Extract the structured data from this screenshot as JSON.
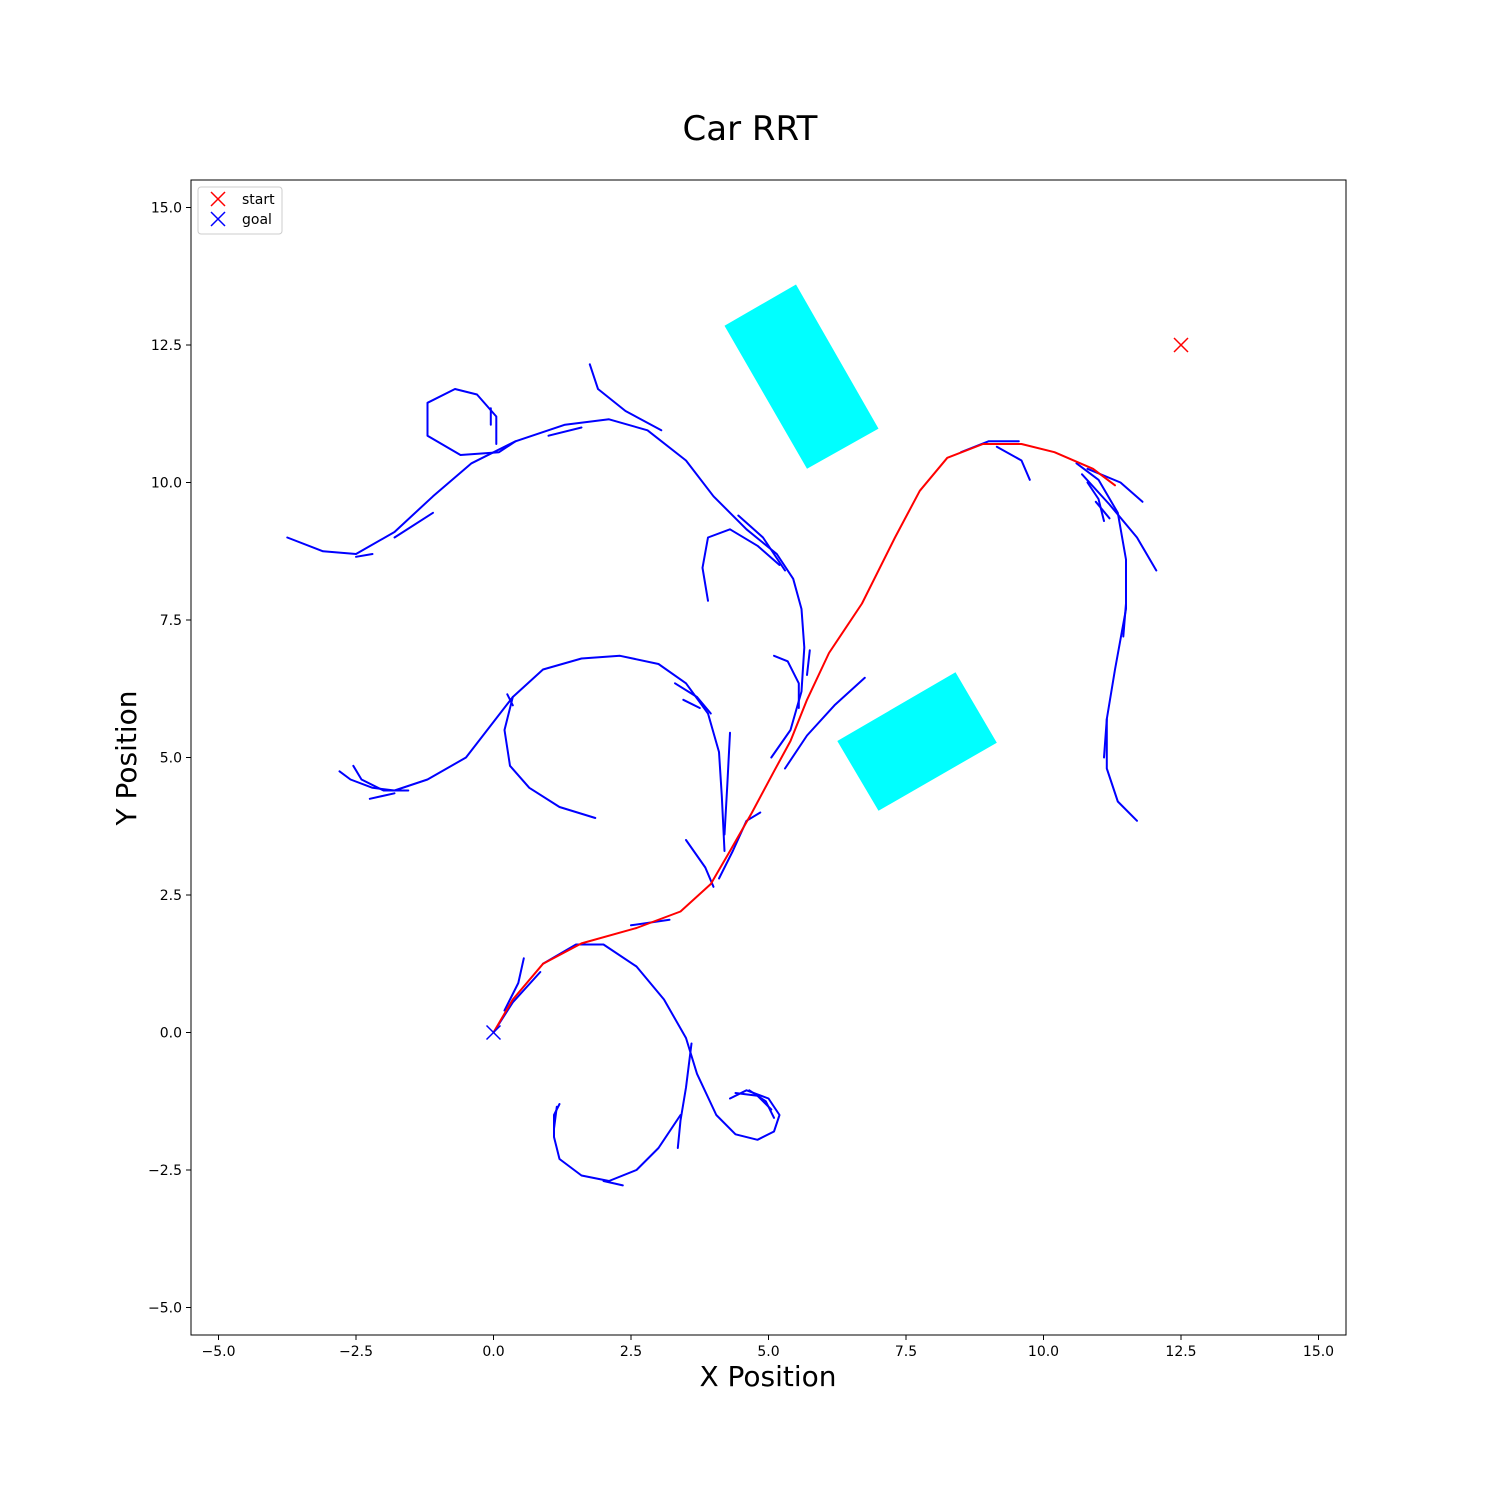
{
  "chart_data": {
    "type": "line",
    "title": "Car RRT",
    "xlabel": "X Position",
    "ylabel": "Y Position",
    "xlim": [
      -5.5,
      15.5
    ],
    "ylim": [
      -5.5,
      15.5
    ],
    "xticks": [
      -5.0,
      -2.5,
      0.0,
      2.5,
      5.0,
      7.5,
      10.0,
      12.5,
      15.0
    ],
    "yticks": [
      -5.0,
      -2.5,
      0.0,
      2.5,
      5.0,
      7.5,
      10.0,
      12.5,
      15.0
    ],
    "xtick_labels": [
      "−5.0",
      "−2.5",
      "0.0",
      "2.5",
      "5.0",
      "7.5",
      "10.0",
      "12.5",
      "15.0"
    ],
    "ytick_labels": [
      "−5.0",
      "−2.5",
      "0.0",
      "2.5",
      "5.0",
      "7.5",
      "10.0",
      "12.5",
      "15.0"
    ],
    "grid": false,
    "legend_position": "top-left",
    "legend": [
      {
        "label": "start",
        "color": "#ff0000",
        "marker": "x"
      },
      {
        "label": "goal",
        "color": "#0000ff",
        "marker": "x"
      }
    ],
    "markers": [
      {
        "name": "start",
        "x": 12.5,
        "y": 12.5,
        "color": "#ff0000"
      },
      {
        "name": "goal",
        "x": 0.0,
        "y": 0.0,
        "color": "#0000ff"
      }
    ],
    "obstacles": [
      {
        "color": "#00ffff",
        "corners": [
          [
            4.2,
            12.85
          ],
          [
            5.5,
            13.6
          ],
          [
            7.0,
            10.98
          ],
          [
            5.7,
            10.25
          ]
        ]
      },
      {
        "color": "#00ffff",
        "corners": [
          [
            6.25,
            5.3
          ],
          [
            8.4,
            6.55
          ],
          [
            9.15,
            5.27
          ],
          [
            7.0,
            4.03
          ]
        ]
      }
    ],
    "tree_color": "#0000ff",
    "path_color": "#ff0000",
    "series": [
      {
        "color": "#ff0000",
        "points": [
          [
            0.0,
            0.0
          ],
          [
            0.35,
            0.6
          ],
          [
            0.9,
            1.25
          ],
          [
            1.6,
            1.62
          ],
          [
            2.6,
            1.9
          ],
          [
            3.4,
            2.2
          ],
          [
            3.95,
            2.7
          ],
          [
            4.3,
            3.3
          ],
          [
            4.7,
            4.0
          ],
          [
            5.1,
            4.75
          ],
          [
            5.4,
            5.3
          ],
          [
            5.7,
            6.05
          ],
          [
            6.1,
            6.9
          ],
          [
            6.7,
            7.8
          ],
          [
            7.3,
            9.0
          ],
          [
            7.75,
            9.85
          ],
          [
            8.25,
            10.45
          ],
          [
            8.9,
            10.7
          ],
          [
            9.6,
            10.7
          ],
          [
            10.2,
            10.55
          ],
          [
            10.9,
            10.25
          ],
          [
            11.3,
            9.95
          ]
        ]
      },
      {
        "points": [
          [
            0.0,
            0.0
          ],
          [
            0.35,
            0.55
          ],
          [
            0.85,
            1.1
          ]
        ]
      },
      {
        "points": [
          [
            0.2,
            0.4
          ],
          [
            0.45,
            0.9
          ],
          [
            0.55,
            1.35
          ]
        ]
      },
      {
        "points": [
          [
            0.9,
            1.25
          ],
          [
            1.5,
            1.6
          ],
          [
            2.0,
            1.6
          ],
          [
            2.6,
            1.2
          ],
          [
            3.1,
            0.6
          ],
          [
            3.5,
            -0.1
          ],
          [
            3.7,
            -0.75
          ],
          [
            4.05,
            -1.5
          ],
          [
            4.4,
            -1.85
          ],
          [
            4.8,
            -1.95
          ],
          [
            5.1,
            -1.8
          ],
          [
            5.2,
            -1.5
          ],
          [
            5.0,
            -1.2
          ],
          [
            4.6,
            -1.05
          ],
          [
            4.3,
            -1.2
          ]
        ]
      },
      {
        "points": [
          [
            4.4,
            -1.1
          ],
          [
            4.8,
            -1.15
          ],
          [
            5.05,
            -1.4
          ]
        ]
      },
      {
        "points": [
          [
            4.65,
            -1.05
          ],
          [
            4.95,
            -1.25
          ],
          [
            5.1,
            -1.55
          ]
        ]
      },
      {
        "points": [
          [
            3.6,
            -0.2
          ],
          [
            3.5,
            -1.0
          ],
          [
            3.4,
            -1.6
          ],
          [
            3.35,
            -2.1
          ]
        ]
      },
      {
        "points": [
          [
            3.4,
            -1.5
          ],
          [
            3.0,
            -2.1
          ],
          [
            2.6,
            -2.5
          ],
          [
            2.1,
            -2.7
          ],
          [
            1.6,
            -2.6
          ],
          [
            1.2,
            -2.3
          ],
          [
            1.1,
            -1.9
          ],
          [
            1.1,
            -1.5
          ],
          [
            1.2,
            -1.3
          ]
        ]
      },
      {
        "points": [
          [
            2.0,
            -2.7
          ],
          [
            2.35,
            -2.78
          ]
        ]
      },
      {
        "points": [
          [
            1.15,
            -1.35
          ],
          [
            1.1,
            -1.75
          ]
        ]
      },
      {
        "points": [
          [
            3.5,
            3.5
          ],
          [
            3.85,
            3.0
          ],
          [
            4.0,
            2.65
          ]
        ]
      },
      {
        "points": [
          [
            4.1,
            2.8
          ],
          [
            4.35,
            3.3
          ],
          [
            4.6,
            3.85
          ],
          [
            4.85,
            4.0
          ]
        ]
      },
      {
        "points": [
          [
            2.5,
            1.95
          ],
          [
            3.2,
            2.05
          ]
        ]
      },
      {
        "points": [
          [
            4.2,
            3.3
          ],
          [
            4.15,
            4.3
          ],
          [
            4.1,
            5.1
          ],
          [
            3.9,
            5.8
          ],
          [
            3.5,
            6.35
          ],
          [
            3.0,
            6.7
          ],
          [
            2.3,
            6.85
          ],
          [
            1.6,
            6.8
          ],
          [
            0.9,
            6.6
          ],
          [
            0.35,
            6.1
          ],
          [
            -0.5,
            5.0
          ],
          [
            -1.2,
            4.6
          ],
          [
            -1.8,
            4.4
          ],
          [
            -2.2,
            4.45
          ],
          [
            -2.6,
            4.6
          ],
          [
            -2.8,
            4.75
          ]
        ]
      },
      {
        "points": [
          [
            -2.55,
            4.85
          ],
          [
            -2.4,
            4.6
          ],
          [
            -2.0,
            4.4
          ],
          [
            -1.55,
            4.4
          ]
        ]
      },
      {
        "points": [
          [
            -2.25,
            4.25
          ],
          [
            -1.8,
            4.35
          ]
        ]
      },
      {
        "points": [
          [
            4.2,
            3.6
          ],
          [
            4.25,
            4.5
          ],
          [
            4.3,
            5.45
          ]
        ]
      },
      {
        "points": [
          [
            3.3,
            6.35
          ],
          [
            3.7,
            6.1
          ],
          [
            3.95,
            5.8
          ]
        ]
      },
      {
        "points": [
          [
            3.45,
            6.05
          ],
          [
            3.75,
            5.9
          ]
        ]
      },
      {
        "points": [
          [
            0.35,
            6.1
          ],
          [
            0.2,
            5.5
          ],
          [
            0.3,
            4.85
          ],
          [
            0.65,
            4.45
          ],
          [
            1.2,
            4.1
          ],
          [
            1.85,
            3.9
          ]
        ]
      },
      {
        "points": [
          [
            0.25,
            6.15
          ],
          [
            0.35,
            5.95
          ]
        ]
      },
      {
        "points": [
          [
            5.05,
            5.0
          ],
          [
            5.4,
            5.5
          ],
          [
            5.6,
            6.2
          ],
          [
            5.65,
            7.0
          ],
          [
            5.6,
            7.7
          ],
          [
            5.45,
            8.25
          ],
          [
            5.15,
            8.7
          ],
          [
            4.6,
            9.15
          ],
          [
            4.0,
            9.75
          ],
          [
            3.5,
            10.4
          ],
          [
            2.8,
            10.95
          ],
          [
            2.1,
            11.15
          ],
          [
            1.3,
            11.05
          ],
          [
            0.4,
            10.75
          ],
          [
            -0.4,
            10.35
          ],
          [
            -1.1,
            9.75
          ],
          [
            -1.8,
            9.1
          ],
          [
            -2.5,
            8.7
          ],
          [
            -3.1,
            8.75
          ],
          [
            -3.75,
            9.0
          ]
        ]
      },
      {
        "points": [
          [
            5.2,
            8.5
          ],
          [
            4.8,
            8.85
          ],
          [
            4.3,
            9.15
          ],
          [
            3.9,
            9.0
          ],
          [
            3.8,
            8.45
          ],
          [
            3.9,
            7.85
          ]
        ]
      },
      {
        "points": [
          [
            4.45,
            9.4
          ],
          [
            4.9,
            9.0
          ],
          [
            5.3,
            8.4
          ]
        ]
      },
      {
        "points": [
          [
            5.3,
            4.8
          ],
          [
            5.7,
            5.4
          ],
          [
            6.2,
            5.95
          ],
          [
            6.75,
            6.45
          ]
        ]
      },
      {
        "points": [
          [
            5.55,
            5.9
          ],
          [
            5.55,
            6.35
          ],
          [
            5.35,
            6.75
          ],
          [
            5.1,
            6.85
          ]
        ]
      },
      {
        "points": [
          [
            5.7,
            6.5
          ],
          [
            5.75,
            6.95
          ]
        ]
      },
      {
        "points": [
          [
            3.05,
            10.95
          ],
          [
            2.4,
            11.3
          ],
          [
            1.9,
            11.7
          ],
          [
            1.75,
            12.15
          ]
        ]
      },
      {
        "points": [
          [
            0.4,
            10.75
          ],
          [
            0.1,
            10.55
          ],
          [
            -0.6,
            10.5
          ],
          [
            -1.2,
            10.85
          ],
          [
            -1.2,
            11.45
          ],
          [
            -0.7,
            11.7
          ],
          [
            -0.3,
            11.6
          ],
          [
            0.05,
            11.2
          ],
          [
            0.05,
            10.7
          ]
        ]
      },
      {
        "points": [
          [
            -0.05,
            11.35
          ],
          [
            -0.05,
            11.05
          ]
        ]
      },
      {
        "points": [
          [
            -1.8,
            9.0
          ],
          [
            -1.1,
            9.45
          ]
        ]
      },
      {
        "points": [
          [
            -2.5,
            8.65
          ],
          [
            -2.2,
            8.7
          ]
        ]
      },
      {
        "points": [
          [
            1.0,
            10.85
          ],
          [
            1.6,
            11.0
          ]
        ]
      },
      {
        "points": [
          [
            8.5,
            10.55
          ],
          [
            9.0,
            10.75
          ],
          [
            9.55,
            10.75
          ]
        ]
      },
      {
        "points": [
          [
            9.15,
            10.65
          ],
          [
            9.6,
            10.4
          ],
          [
            9.75,
            10.05
          ]
        ]
      },
      {
        "points": [
          [
            10.6,
            10.35
          ],
          [
            11.0,
            10.05
          ],
          [
            11.35,
            9.45
          ],
          [
            11.5,
            8.6
          ],
          [
            11.5,
            7.7
          ],
          [
            11.3,
            6.6
          ],
          [
            11.15,
            5.7
          ],
          [
            11.15,
            4.8
          ],
          [
            11.35,
            4.2
          ],
          [
            11.7,
            3.85
          ]
        ]
      },
      {
        "points": [
          [
            10.8,
            10.25
          ],
          [
            11.4,
            10.0
          ],
          [
            11.8,
            9.65
          ]
        ]
      },
      {
        "points": [
          [
            10.7,
            10.15
          ],
          [
            11.2,
            9.6
          ],
          [
            11.7,
            9.0
          ],
          [
            12.05,
            8.4
          ]
        ]
      },
      {
        "points": [
          [
            10.8,
            10.0
          ],
          [
            11.0,
            9.7
          ],
          [
            11.1,
            9.3
          ]
        ]
      },
      {
        "points": [
          [
            10.95,
            9.65
          ],
          [
            11.2,
            9.35
          ]
        ]
      },
      {
        "points": [
          [
            11.5,
            7.8
          ],
          [
            11.45,
            7.2
          ]
        ]
      },
      {
        "points": [
          [
            11.15,
            5.7
          ],
          [
            11.1,
            5.0
          ]
        ]
      }
    ]
  }
}
